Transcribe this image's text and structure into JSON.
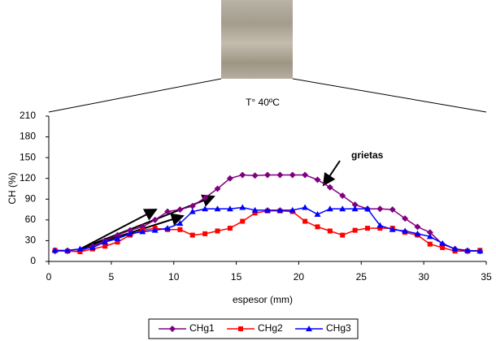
{
  "chart_data": {
    "type": "line",
    "title": "T° 40ºC",
    "x_label": "espesor (mm)",
    "y_label": "CH (%)",
    "x": [
      0.5,
      1.5,
      2.5,
      3.5,
      4.5,
      5.5,
      6.5,
      7.5,
      8.5,
      9.5,
      10.5,
      11.5,
      12.5,
      13.5,
      14.5,
      15.5,
      16.5,
      17.5,
      18.5,
      19.5,
      20.5,
      21.5,
      22.5,
      23.5,
      24.5,
      25.5,
      26.5,
      27.5,
      28.5,
      29.5,
      30.5,
      31.5,
      32.5,
      33.5,
      34.5
    ],
    "series": [
      {
        "name": "CHg1",
        "color": "#800080",
        "marker": "diamond",
        "values": [
          15,
          15,
          15,
          22,
          30,
          38,
          45,
          50,
          60,
          72,
          75,
          80,
          92,
          105,
          120,
          125,
          124,
          125,
          125,
          125,
          125,
          118,
          107,
          95,
          82,
          76,
          76,
          75,
          62,
          50,
          42,
          25,
          18,
          15,
          15
        ]
      },
      {
        "name": "CHg2",
        "color": "#ff0000",
        "marker": "square",
        "values": [
          16,
          15,
          14,
          18,
          22,
          28,
          38,
          45,
          48,
          46,
          46,
          38,
          40,
          44,
          48,
          58,
          70,
          73,
          73,
          72,
          58,
          50,
          44,
          38,
          45,
          48,
          48,
          48,
          42,
          38,
          25,
          20,
          15,
          15,
          16
        ]
      },
      {
        "name": "CHg3",
        "color": "#0000ff",
        "marker": "triangle",
        "values": [
          16,
          16,
          18,
          20,
          28,
          33,
          40,
          43,
          45,
          48,
          55,
          72,
          76,
          76,
          76,
          78,
          74,
          74,
          74,
          74,
          78,
          68,
          76,
          76,
          76,
          76,
          52,
          46,
          44,
          40,
          36,
          26,
          18,
          16,
          15
        ]
      }
    ],
    "xlim": [
      0,
      35
    ],
    "xticks": [
      0,
      5,
      10,
      15,
      20,
      25,
      30,
      35
    ],
    "ylim": [
      0,
      210
    ],
    "yticks": [
      0,
      30,
      60,
      90,
      120,
      150,
      180,
      210
    ],
    "annotation": "grietas",
    "legend": "bottom"
  }
}
